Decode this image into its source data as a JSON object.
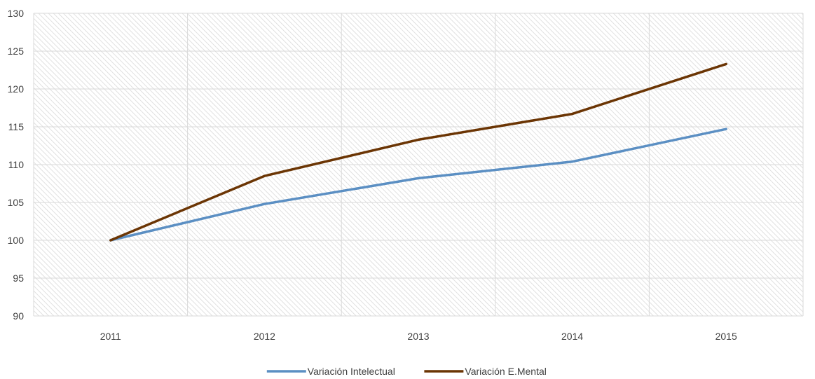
{
  "chart_data": {
    "type": "line",
    "title": "",
    "xlabel": "",
    "ylabel": "",
    "categories": [
      "2011",
      "2012",
      "2013",
      "2014",
      "2015"
    ],
    "series": [
      {
        "name": "Variación Intelectual",
        "color": "#5b8fc3",
        "values": [
          100,
          104.8,
          108.2,
          110.4,
          114.7
        ]
      },
      {
        "name": "Variación E.Mental",
        "color": "#6b3504",
        "values": [
          100,
          108.5,
          113.3,
          116.7,
          123.3
        ]
      }
    ],
    "ylim": [
      90,
      130
    ],
    "yticks": [
      90,
      95,
      100,
      105,
      110,
      115,
      120,
      125,
      130
    ],
    "grid": true,
    "legend": "bottom-center",
    "plot_background": "diagonal-hatch"
  }
}
